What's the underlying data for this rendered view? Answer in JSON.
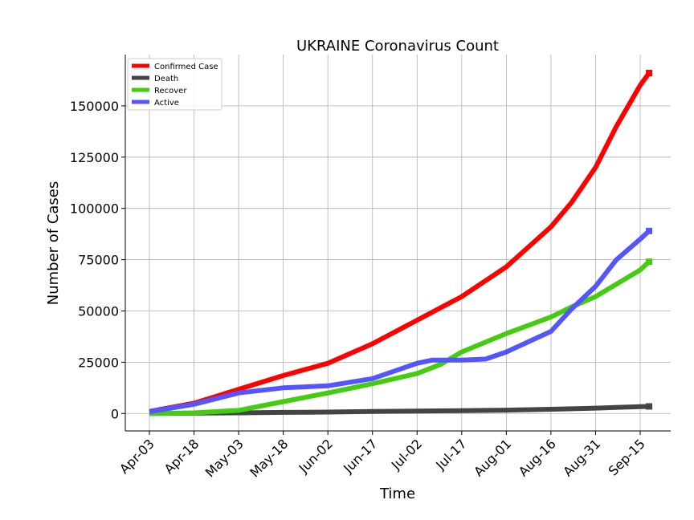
{
  "chart_data": {
    "type": "line",
    "title": "UKRAINE Coronavirus Count",
    "xlabel": "Time",
    "ylabel": "Number of Cases",
    "x_tick_labels": [
      "Apr-03",
      "Apr-18",
      "May-03",
      "May-18",
      "Jun-02",
      "Jun-17",
      "Jul-02",
      "Jul-17",
      "Aug-01",
      "Aug-16",
      "Aug-31",
      "Sep-15"
    ],
    "y_tick_labels": [
      "0",
      "25000",
      "50000",
      "75000",
      "100000",
      "125000",
      "150000"
    ],
    "ylim": [
      -8500,
      175000
    ],
    "x_start_date": "2020-04-03",
    "grid": true,
    "legend_position": "top-left",
    "series": [
      {
        "name": "Confirmed Case",
        "color": "#ff0000",
        "points": [
          [
            "2020-04-03",
            1000
          ],
          [
            "2020-04-18",
            5000
          ],
          [
            "2020-05-03",
            11800
          ],
          [
            "2020-05-18",
            18500
          ],
          [
            "2020-06-02",
            24500
          ],
          [
            "2020-06-17",
            34000
          ],
          [
            "2020-07-02",
            45500
          ],
          [
            "2020-07-17",
            57000
          ],
          [
            "2020-08-01",
            71500
          ],
          [
            "2020-08-16",
            91000
          ],
          [
            "2020-08-23",
            103000
          ],
          [
            "2020-08-31",
            120000
          ],
          [
            "2020-09-07",
            140000
          ],
          [
            "2020-09-15",
            160000
          ],
          [
            "2020-09-18",
            166000
          ]
        ]
      },
      {
        "name": "Death",
        "color": "#444444",
        "points": [
          [
            "2020-04-03",
            30
          ],
          [
            "2020-04-18",
            150
          ],
          [
            "2020-05-03",
            300
          ],
          [
            "2020-05-18",
            550
          ],
          [
            "2020-06-02",
            700
          ],
          [
            "2020-06-17",
            950
          ],
          [
            "2020-07-02",
            1150
          ],
          [
            "2020-07-17",
            1350
          ],
          [
            "2020-08-01",
            1650
          ],
          [
            "2020-08-16",
            2050
          ],
          [
            "2020-08-31",
            2600
          ],
          [
            "2020-09-15",
            3300
          ],
          [
            "2020-09-18",
            3450
          ]
        ]
      },
      {
        "name": "Recover",
        "color": "#44cc11",
        "points": [
          [
            "2020-04-03",
            20
          ],
          [
            "2020-04-18",
            300
          ],
          [
            "2020-05-03",
            1500
          ],
          [
            "2020-05-18",
            5800
          ],
          [
            "2020-06-02",
            10000
          ],
          [
            "2020-06-17",
            14500
          ],
          [
            "2020-07-02",
            19500
          ],
          [
            "2020-07-10",
            24000
          ],
          [
            "2020-07-17",
            30000
          ],
          [
            "2020-08-01",
            39000
          ],
          [
            "2020-08-16",
            47000
          ],
          [
            "2020-08-23",
            52000
          ],
          [
            "2020-08-31",
            57000
          ],
          [
            "2020-09-15",
            70000
          ],
          [
            "2020-09-18",
            74000
          ]
        ]
      },
      {
        "name": "Active",
        "color": "#5555ff",
        "points": [
          [
            "2020-04-03",
            900
          ],
          [
            "2020-04-18",
            4500
          ],
          [
            "2020-05-03",
            10000
          ],
          [
            "2020-05-18",
            12500
          ],
          [
            "2020-06-02",
            13500
          ],
          [
            "2020-06-17",
            17000
          ],
          [
            "2020-07-02",
            24500
          ],
          [
            "2020-07-07",
            26000
          ],
          [
            "2020-07-17",
            26000
          ],
          [
            "2020-07-25",
            26500
          ],
          [
            "2020-08-01",
            30000
          ],
          [
            "2020-08-16",
            40000
          ],
          [
            "2020-08-23",
            51000
          ],
          [
            "2020-08-31",
            62000
          ],
          [
            "2020-09-07",
            75000
          ],
          [
            "2020-09-15",
            85000
          ],
          [
            "2020-09-18",
            89000
          ]
        ]
      }
    ]
  }
}
